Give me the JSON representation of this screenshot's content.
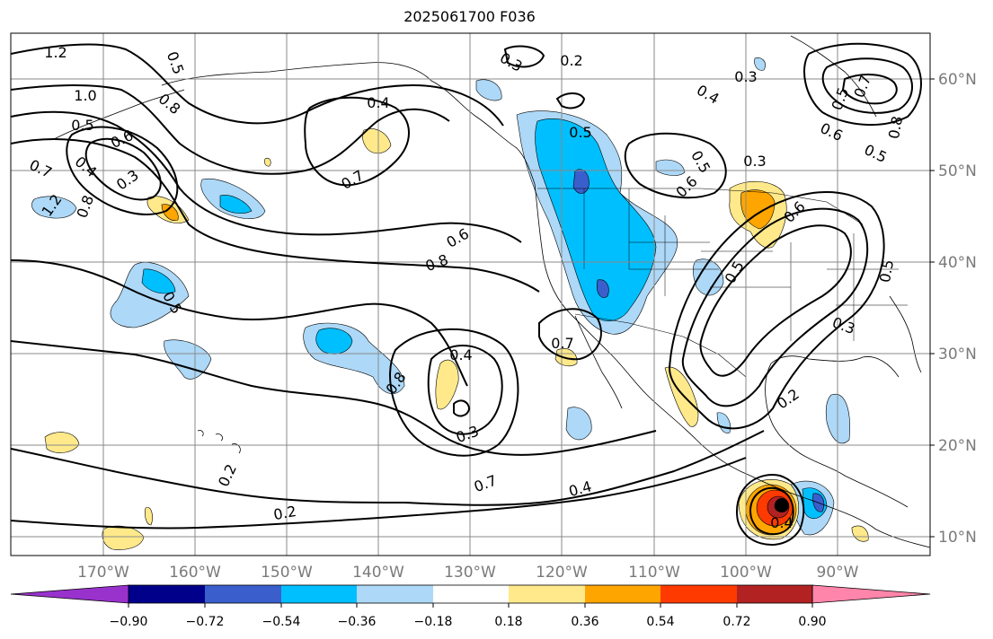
{
  "title": "2025061700 F036",
  "map": {
    "projection": "cylindrical",
    "extent": {
      "lon_min": -180,
      "lon_max": -80,
      "lat_min": 8,
      "lat_max": 65
    },
    "lon_ticks": [
      "170°W",
      "160°W",
      "150°W",
      "140°W",
      "130°W",
      "120°W",
      "110°W",
      "100°W",
      "90°W"
    ],
    "lat_ticks": [
      "10°N",
      "20°N",
      "30°N",
      "40°N",
      "50°N",
      "60°N"
    ],
    "gridlines": true
  },
  "colorbar": {
    "ticks": [
      "−0.90",
      "−0.72",
      "−0.54",
      "−0.36",
      "−0.18",
      "0.18",
      "0.36",
      "0.54",
      "0.72",
      "0.90"
    ],
    "colors": [
      "#9932cc",
      "#00008b",
      "#3a5fcd",
      "#00bfff",
      "#add8f7",
      "#ffffff",
      "#ffe98a",
      "#ffa500",
      "#ff3a00",
      "#b22222",
      "#ff85aa"
    ],
    "extend": "both"
  },
  "contour_labels": [
    "1.2",
    "0.5",
    "0.8",
    "1.0",
    "0.5",
    "0.6",
    "0.7",
    "0.4",
    "0.3",
    "1.2",
    "0.8",
    "0.3",
    "0.2",
    "0.3",
    "0.4",
    "0.4",
    "0.5",
    "0.7",
    "0.6",
    "0.8",
    "0.5",
    "0.3",
    "0.5",
    "0.6",
    "0.5",
    "0.7",
    "0.6",
    "0.5",
    "0.8",
    "0.5",
    "0.6",
    "0.5",
    "0.3",
    "0.7",
    "0.4",
    "0.8",
    "0.3",
    "0.7",
    "0.4",
    "0.2",
    "0.2",
    "0.2",
    "0.4"
  ]
}
